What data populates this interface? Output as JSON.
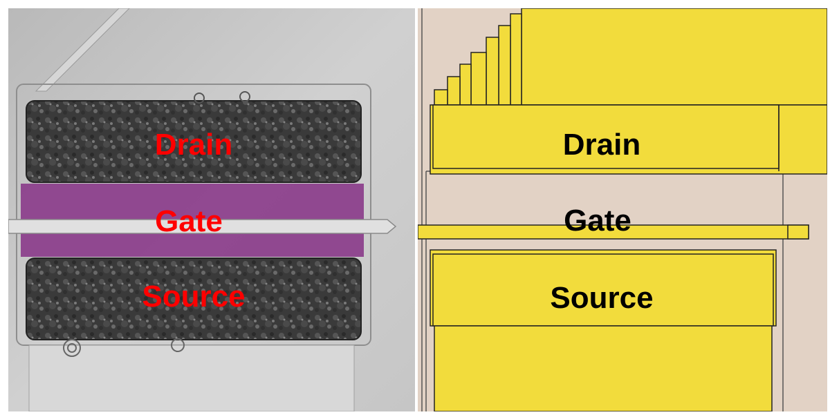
{
  "micrograph": {
    "labels": {
      "drain": "Drain",
      "gate": "Gate",
      "source": "Source"
    },
    "colors": {
      "label": "#ff0000",
      "gate_overlay": "#8a3a8a",
      "background": "#c9c9c9"
    }
  },
  "layout_view": {
    "labels": {
      "drain": "Drain",
      "gate": "Gate",
      "source": "Source"
    },
    "colors": {
      "label": "#000000",
      "metal": "#f2dc3c",
      "background": "#e2d2c5"
    }
  }
}
